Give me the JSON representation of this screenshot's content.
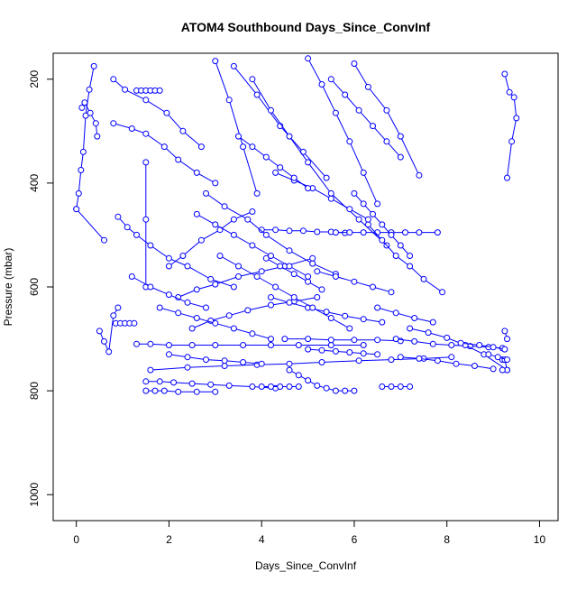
{
  "chart_data": {
    "type": "line",
    "title": "ATOM4 Southbound Days_Since_ConvInf",
    "xlabel": "Days_Since_ConvInf",
    "ylabel": "Pressure (mbar)",
    "xlim": [
      -0.5,
      10.4
    ],
    "ylim": [
      1050,
      150
    ],
    "y_reversed": true,
    "x_ticks": [
      0,
      2,
      4,
      6,
      8,
      10
    ],
    "x_tick_labels": [
      "0",
      "2",
      "4",
      "6",
      "8",
      "10"
    ],
    "y_ticks": [
      200,
      400,
      600,
      800,
      1000
    ],
    "y_tick_labels": [
      "200",
      "400",
      "600",
      "800",
      "1000"
    ],
    "grid": false,
    "legend": "none",
    "marker": "open-circle",
    "color": "#0000ff",
    "series": [
      {
        "x": [
          0.0,
          0.05,
          0.1,
          0.15,
          0.2,
          0.28,
          0.38
        ],
        "y": [
          450,
          420,
          375,
          340,
          270,
          220,
          175
        ]
      },
      {
        "x": [
          0.12,
          0.18,
          0.3,
          0.42,
          0.45
        ],
        "y": [
          255,
          245,
          265,
          285,
          310
        ]
      },
      {
        "x": [
          0.0,
          0.6
        ],
        "y": [
          450,
          510
        ]
      },
      {
        "x": [
          0.8,
          1.05,
          1.5,
          1.95,
          2.3,
          2.7
        ],
        "y": [
          200,
          220,
          240,
          265,
          300,
          330
        ]
      },
      {
        "x": [
          1.3,
          1.4,
          1.5,
          1.6,
          1.7,
          1.8
        ],
        "y": [
          222,
          222,
          222,
          222,
          222,
          222
        ]
      },
      {
        "x": [
          0.8,
          1.2,
          1.5,
          1.9,
          2.2,
          2.6,
          3.0
        ],
        "y": [
          285,
          295,
          305,
          330,
          355,
          380,
          400
        ]
      },
      {
        "x": [
          0.9,
          1.1,
          1.3,
          1.6,
          2.0,
          2.4,
          2.9,
          3.4
        ],
        "y": [
          465,
          485,
          500,
          520,
          545,
          560,
          585,
          600
        ]
      },
      {
        "x": [
          0.85,
          0.95,
          1.05,
          1.15,
          1.25
        ],
        "y": [
          670,
          670,
          670,
          670,
          670
        ]
      },
      {
        "x": [
          0.5,
          0.6,
          0.7,
          0.8,
          0.9
        ],
        "y": [
          685,
          705,
          725,
          655,
          640
        ]
      },
      {
        "x": [
          1.3,
          1.6,
          2.0,
          2.5,
          3.0,
          3.6,
          4.2,
          4.8,
          5.5,
          6.2
        ],
        "y": [
          710,
          710,
          712,
          712,
          712,
          712,
          712,
          712,
          712,
          712
        ]
      },
      {
        "x": [
          1.5,
          1.8,
          2.1,
          2.5,
          2.9,
          3.3,
          3.8,
          4.3
        ],
        "y": [
          782,
          782,
          784,
          786,
          788,
          790,
          792,
          795
        ]
      },
      {
        "x": [
          1.5,
          1.7,
          1.9,
          2.2,
          2.6,
          3.0
        ],
        "y": [
          800,
          800,
          800,
          802,
          802,
          802
        ]
      },
      {
        "x": [
          1.6,
          2.4,
          3.2,
          3.9,
          4.6,
          5.3,
          6.1,
          6.8,
          7.5,
          8.1
        ],
        "y": [
          760,
          755,
          752,
          750,
          748,
          745,
          742,
          740,
          738,
          735
        ]
      },
      {
        "x": [
          1.5,
          1.5,
          1.5
        ],
        "y": [
          360,
          470,
          600
        ]
      },
      {
        "x": [
          2.0,
          2.3,
          2.7,
          3.1,
          3.4,
          3.8
        ],
        "y": [
          560,
          540,
          510,
          490,
          470,
          455
        ]
      },
      {
        "x": [
          2.2,
          2.6,
          3.0,
          3.5,
          4.0,
          4.5,
          5.1
        ],
        "y": [
          620,
          605,
          595,
          580,
          570,
          560,
          545
        ]
      },
      {
        "x": [
          2.5,
          2.9,
          3.3,
          3.7,
          4.2,
          4.7,
          5.2
        ],
        "y": [
          680,
          665,
          655,
          645,
          635,
          628,
          620
        ]
      },
      {
        "x": [
          3.0,
          3.3,
          3.6,
          3.9
        ],
        "y": [
          165,
          240,
          330,
          420
        ]
      },
      {
        "x": [
          3.4,
          3.9,
          4.4,
          4.9,
          5.4
        ],
        "y": [
          175,
          230,
          290,
          340,
          390
        ]
      },
      {
        "x": [
          3.8,
          4.2,
          4.6,
          5.0,
          5.5,
          6.1,
          6.7
        ],
        "y": [
          200,
          260,
          310,
          360,
          420,
          470,
          520
        ]
      },
      {
        "x": [
          4.0,
          4.3,
          4.6,
          4.9,
          5.2,
          5.5,
          5.8
        ],
        "y": [
          490,
          490,
          492,
          492,
          494,
          494,
          496
        ]
      },
      {
        "x": [
          5.6,
          5.9,
          6.2,
          6.5,
          6.8,
          7.1,
          7.4,
          7.8
        ],
        "y": [
          495,
          495,
          495,
          495,
          495,
          495,
          495,
          495
        ]
      },
      {
        "x": [
          4.1,
          4.4,
          4.7,
          5.0,
          5.3
        ],
        "y": [
          545,
          560,
          575,
          590,
          605
        ]
      },
      {
        "x": [
          4.2,
          4.6,
          5.0,
          5.4,
          5.8,
          6.2,
          6.6
        ],
        "y": [
          620,
          630,
          640,
          648,
          656,
          662,
          668
        ]
      },
      {
        "x": [
          4.5,
          5.0,
          5.5,
          6.0,
          6.5,
          7.0
        ],
        "y": [
          700,
          700,
          702,
          702,
          702,
          704
        ]
      },
      {
        "x": [
          4.6,
          4.8,
          5.0,
          5.2,
          5.4,
          5.6,
          5.8,
          6.0
        ],
        "y": [
          760,
          770,
          780,
          790,
          795,
          800,
          800,
          800
        ]
      },
      {
        "x": [
          4.0,
          4.2,
          4.4,
          4.6,
          4.8
        ],
        "y": [
          792,
          792,
          792,
          792,
          792
        ]
      },
      {
        "x": [
          5.0,
          5.3,
          5.6,
          5.9,
          6.2,
          6.5
        ],
        "y": [
          160,
          210,
          265,
          320,
          380,
          440
        ]
      },
      {
        "x": [
          5.5,
          5.8,
          6.1,
          6.4,
          6.7,
          7.0
        ],
        "y": [
          200,
          230,
          260,
          290,
          320,
          350
        ]
      },
      {
        "x": [
          6.0,
          6.3,
          6.7,
          7.0,
          7.4
        ],
        "y": [
          170,
          215,
          260,
          310,
          385
        ]
      },
      {
        "x": [
          6.3,
          6.6,
          6.9,
          7.2,
          7.5,
          7.9
        ],
        "y": [
          480,
          510,
          540,
          560,
          585,
          610
        ]
      },
      {
        "x": [
          6.5,
          6.9,
          7.3,
          7.7
        ],
        "y": [
          640,
          650,
          660,
          668
        ]
      },
      {
        "x": [
          6.9,
          7.3,
          7.7,
          8.1,
          8.5,
          8.9,
          9.2
        ],
        "y": [
          700,
          705,
          710,
          712,
          714,
          716,
          718
        ]
      },
      {
        "x": [
          7.0,
          7.4,
          7.8,
          8.2,
          8.6,
          9.0
        ],
        "y": [
          735,
          738,
          742,
          748,
          752,
          758
        ]
      },
      {
        "x": [
          7.2,
          7.6,
          8.0,
          8.4,
          8.8,
          9.3
        ],
        "y": [
          680,
          688,
          698,
          712,
          730,
          760
        ]
      },
      {
        "x": [
          6.6,
          6.8,
          7.0,
          7.2
        ],
        "y": [
          792,
          792,
          792,
          792
        ]
      },
      {
        "x": [
          8.3,
          8.7,
          9.0,
          9.25
        ],
        "y": [
          708,
          712,
          716,
          720
        ]
      },
      {
        "x": [
          9.2,
          9.25,
          9.3,
          9.2
        ],
        "y": [
          740,
          740,
          760,
          760
        ]
      },
      {
        "x": [
          8.9,
          9.1,
          9.3
        ],
        "y": [
          730,
          735,
          740
        ]
      },
      {
        "x": [
          9.25,
          9.35,
          9.45,
          9.5,
          9.4,
          9.3
        ],
        "y": [
          190,
          225,
          235,
          275,
          320,
          390
        ]
      },
      {
        "x": [
          9.25,
          9.3
        ],
        "y": [
          685,
          700
        ]
      },
      {
        "x": [
          2.8,
          3.2,
          3.7,
          4.1,
          4.6,
          5.1,
          5.6
        ],
        "y": [
          420,
          445,
          470,
          500,
          530,
          555,
          575
        ]
      },
      {
        "x": [
          3.1,
          3.5,
          3.9,
          4.3,
          4.7,
          5.1,
          5.5,
          5.9
        ],
        "y": [
          540,
          560,
          580,
          600,
          620,
          640,
          660,
          680
        ]
      },
      {
        "x": [
          4.3,
          4.7,
          5.1,
          5.5,
          5.9,
          6.3
        ],
        "y": [
          380,
          395,
          410,
          430,
          450,
          470
        ]
      },
      {
        "x": [
          5.2,
          5.6,
          6.0,
          6.4,
          6.8
        ],
        "y": [
          570,
          580,
          590,
          600,
          610
        ]
      },
      {
        "x": [
          1.8,
          2.2,
          2.6,
          3.0,
          3.4,
          3.8,
          4.2
        ],
        "y": [
          640,
          650,
          660,
          670,
          680,
          690,
          700
        ]
      },
      {
        "x": [
          2.0,
          2.4,
          2.8,
          3.2,
          3.6,
          4.0
        ],
        "y": [
          730,
          735,
          740,
          742,
          745,
          748
        ]
      },
      {
        "x": [
          1.2,
          1.6,
          2.0,
          2.4,
          2.8
        ],
        "y": [
          580,
          600,
          615,
          630,
          640
        ]
      },
      {
        "x": [
          3.5,
          3.8,
          4.1,
          4.4,
          4.7,
          5.0
        ],
        "y": [
          310,
          330,
          350,
          370,
          390,
          410
        ]
      },
      {
        "x": [
          6.0,
          6.2,
          6.4,
          6.6,
          6.8,
          7.0,
          7.2
        ],
        "y": [
          420,
          440,
          460,
          480,
          500,
          520,
          540
        ]
      },
      {
        "x": [
          5.0,
          5.3,
          5.6,
          5.9,
          6.2,
          6.5
        ],
        "y": [
          720,
          722,
          724,
          726,
          728,
          730
        ]
      },
      {
        "x": [
          2.6,
          3.0,
          3.4,
          3.8,
          4.2,
          4.6,
          5.0
        ],
        "y": [
          460,
          480,
          500,
          520,
          540,
          560,
          580
        ]
      }
    ]
  }
}
